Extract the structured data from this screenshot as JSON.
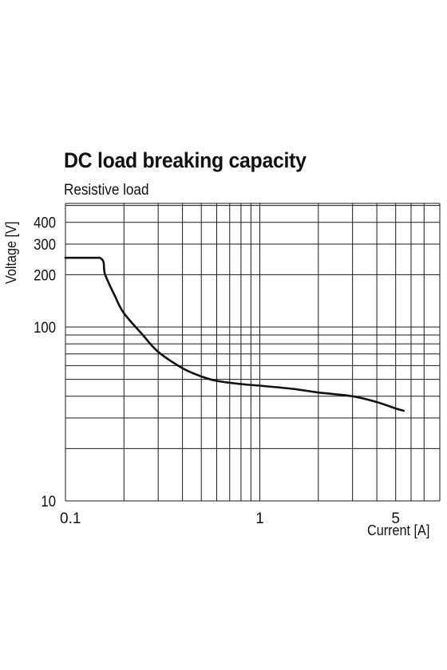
{
  "chart_data": {
    "type": "line",
    "title": "DC load breaking capacity",
    "subtitle": "Resistive load",
    "xlabel": "Current [A]",
    "ylabel": "Voltage [V]",
    "x_scale": "log",
    "y_scale": "log",
    "xlim": [
      0.1,
      7
    ],
    "ylim": [
      10,
      500
    ],
    "x_ticks": [
      {
        "value": 0.1,
        "label": "0.1"
      },
      {
        "value": 1,
        "label": "1"
      },
      {
        "value": 5,
        "label": "5"
      }
    ],
    "y_ticks": [
      {
        "value": 10,
        "label": "10"
      },
      {
        "value": 100,
        "label": "100"
      },
      {
        "value": 200,
        "label": "200"
      },
      {
        "value": 300,
        "label": "300"
      },
      {
        "value": 400,
        "label": "400"
      }
    ],
    "x_gridlines": [
      0.1,
      0.2,
      0.3,
      0.4,
      0.5,
      0.6,
      0.7,
      0.8,
      0.9,
      1,
      2,
      3,
      4,
      5,
      6,
      7
    ],
    "y_gridlines": [
      10,
      20,
      30,
      40,
      50,
      60,
      70,
      80,
      90,
      100,
      200,
      300,
      400,
      500
    ],
    "grid": true,
    "series": [
      {
        "x": [
          0.1,
          0.15,
          0.16,
          0.18,
          0.2,
          0.25,
          0.3,
          0.4,
          0.5,
          0.6,
          0.8,
          1,
          1.5,
          2,
          3,
          4,
          5,
          5.5
        ],
        "y": [
          250,
          250,
          200,
          150,
          120,
          90,
          72,
          58,
          52,
          49,
          47,
          46,
          44,
          42,
          40,
          37,
          34,
          33
        ]
      }
    ]
  }
}
